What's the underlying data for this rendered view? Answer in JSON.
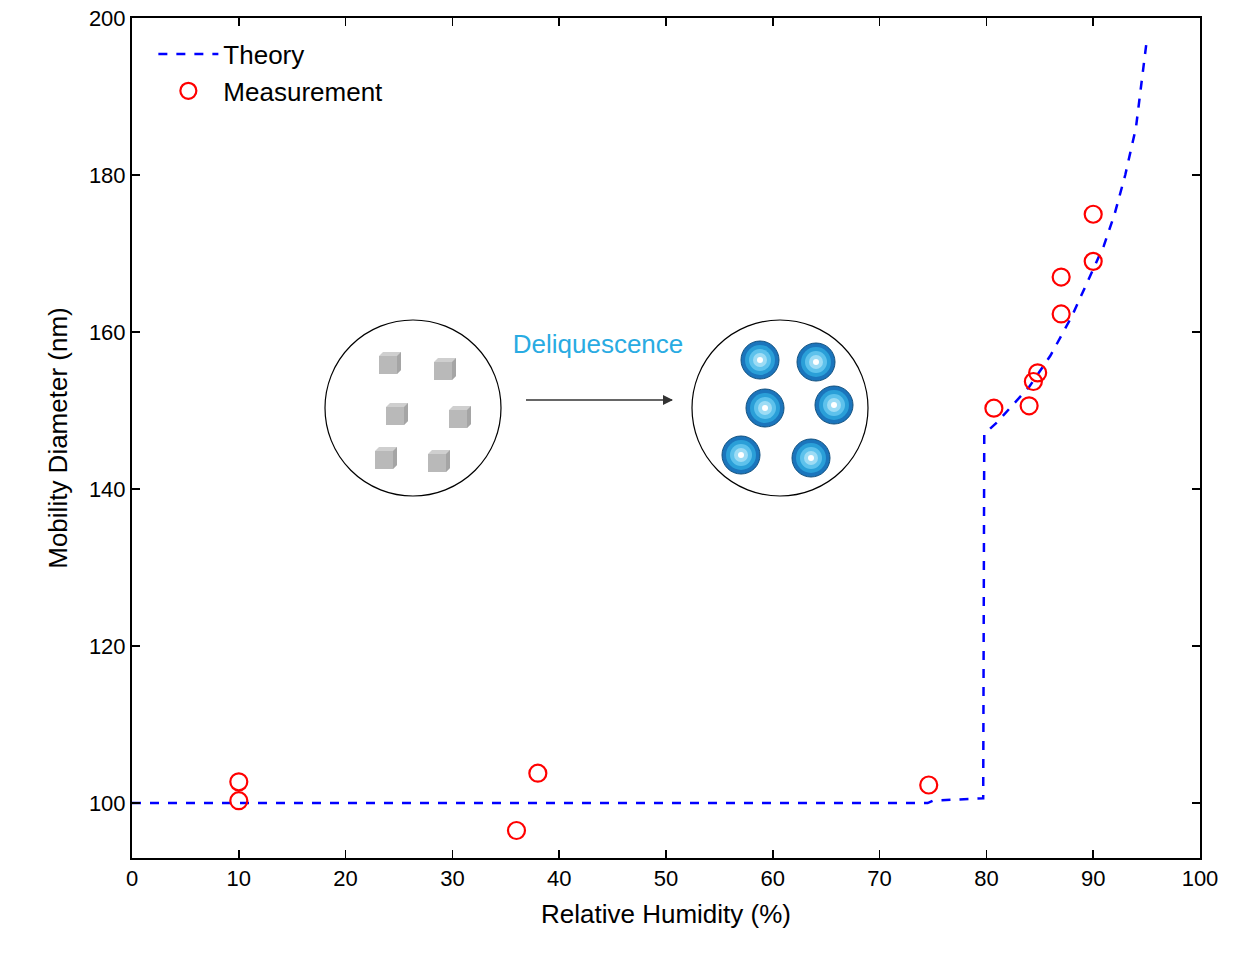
{
  "chart_data": {
    "type": "scatter",
    "xlabel": "Relative Humidity (%)",
    "ylabel": "Mobility Diameter (nm)",
    "xlim": [
      0,
      100
    ],
    "xticks": [
      0,
      10,
      20,
      30,
      40,
      50,
      60,
      70,
      80,
      90,
      100
    ],
    "ylim": [
      93,
      200
    ],
    "yticks": [
      100,
      120,
      140,
      160,
      180,
      200
    ],
    "grid": false,
    "legend": "upper left",
    "annotations": [
      {
        "text": "Deliquescence",
        "color": "#29abe2"
      }
    ],
    "series": [
      {
        "name": "Theory",
        "type": "line",
        "line_style": "dashed",
        "color": "#0000ff",
        "x": [
          0,
          74.5,
          75,
          78,
          79.7,
          79.8,
          81,
          82,
          83,
          84,
          85,
          86,
          87,
          88,
          89,
          90,
          91,
          92,
          93,
          94,
          95
        ],
        "values": [
          100,
          100,
          100.3,
          100.5,
          100.6,
          147,
          148.5,
          150,
          151.5,
          153,
          155,
          157,
          159.5,
          162,
          165,
          168,
          171,
          175,
          180,
          186,
          197
        ]
      },
      {
        "name": "Measurement",
        "type": "scatter",
        "marker": "open circle",
        "color": "#ff0000",
        "x": [
          10,
          10,
          36,
          38,
          74.6,
          80.7,
          84,
          84.4,
          84.8,
          87,
          87,
          90,
          90
        ],
        "values": [
          102.7,
          100.3,
          96.5,
          103.8,
          102.3,
          150.3,
          150.6,
          153.7,
          154.8,
          162.3,
          167,
          169,
          175
        ]
      }
    ]
  }
}
